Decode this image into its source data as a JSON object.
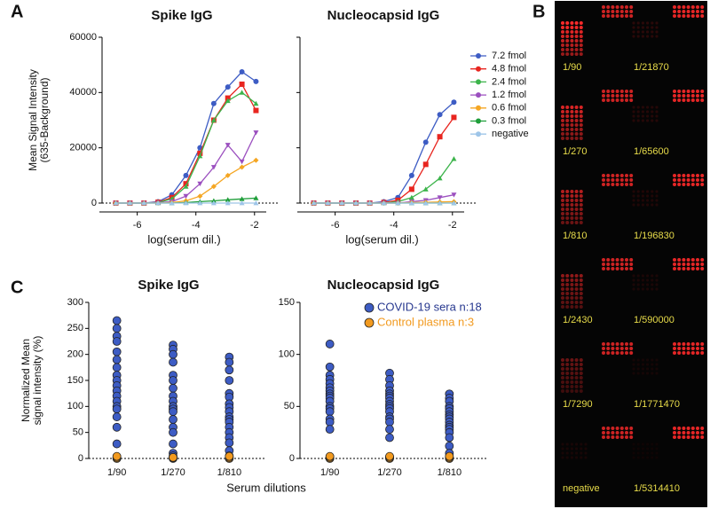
{
  "panel_labels": {
    "a": "A",
    "b": "B",
    "c": "C"
  },
  "shared_xlabel": "Serum dilutions",
  "chart_data": [
    {
      "type": "line",
      "title": "Spike IgG",
      "ylabel": [
        "Mean Signal Intensity",
        "(635-Background)"
      ],
      "xlabel": "log(serum dil.)",
      "x": [
        -6.73,
        -6.25,
        -5.77,
        -5.29,
        -4.82,
        -4.34,
        -3.86,
        -3.39,
        -2.91,
        -2.43,
        -1.95
      ],
      "xlim": [
        -7.2,
        -1.6
      ],
      "xticks": [
        -6,
        -4,
        -2
      ],
      "ylim": [
        0,
        60000
      ],
      "yticks": [
        0,
        20000,
        40000,
        60000
      ],
      "series": [
        {
          "name": "7.2 fmol",
          "color": "#3d5cc4",
          "marker": "circle",
          "values": [
            0,
            0,
            0,
            500,
            3000,
            10000,
            20000,
            36000,
            42000,
            47500,
            44000
          ]
        },
        {
          "name": "4.8 fmol",
          "color": "#e8251f",
          "marker": "square",
          "values": [
            0,
            0,
            0,
            300,
            2000,
            7000,
            18000,
            30000,
            38000,
            43000,
            33500
          ]
        },
        {
          "name": "2.4 fmol",
          "color": "#3cb44b",
          "marker": "triangle",
          "values": [
            0,
            0,
            0,
            200,
            1500,
            6000,
            17000,
            30000,
            37000,
            40000,
            36000
          ]
        },
        {
          "name": "1.2 fmol",
          "color": "#9b4fbf",
          "marker": "down-triangle",
          "values": [
            0,
            0,
            0,
            100,
            500,
            2500,
            7000,
            13000,
            21000,
            15000,
            25500
          ]
        },
        {
          "name": "0.6 fmol",
          "color": "#f5a623",
          "marker": "diamond",
          "values": [
            0,
            0,
            0,
            0,
            200,
            800,
            2500,
            6000,
            10000,
            13000,
            15500
          ]
        },
        {
          "name": "0.3 fmol",
          "color": "#1f9e3a",
          "marker": "triangle",
          "values": [
            0,
            0,
            0,
            0,
            0,
            200,
            500,
            800,
            1200,
            1500,
            1800
          ]
        },
        {
          "name": "negative",
          "color": "#9ec5e8",
          "marker": "triangle",
          "values": [
            0,
            0,
            0,
            0,
            0,
            0,
            0,
            0,
            0,
            0,
            0
          ]
        }
      ]
    },
    {
      "type": "line",
      "title": "Nucleocapsid IgG",
      "xlabel": "log(serum dil.)",
      "legend": "right",
      "x": [
        -6.73,
        -6.25,
        -5.77,
        -5.29,
        -4.82,
        -4.34,
        -3.86,
        -3.39,
        -2.91,
        -2.43,
        -1.95
      ],
      "xlim": [
        -7.2,
        -1.6
      ],
      "xticks": [
        -6,
        -4,
        -2
      ],
      "ylim": [
        0,
        60000
      ],
      "series": [
        {
          "name": "7.2 fmol",
          "color": "#3d5cc4",
          "marker": "circle",
          "values": [
            0,
            0,
            0,
            0,
            0,
            500,
            2000,
            10000,
            22000,
            32000,
            36500
          ]
        },
        {
          "name": "4.8 fmol",
          "color": "#e8251f",
          "marker": "square",
          "values": [
            0,
            0,
            0,
            0,
            0,
            200,
            1000,
            5000,
            14000,
            24000,
            31000
          ]
        },
        {
          "name": "2.4 fmol",
          "color": "#3cb44b",
          "marker": "triangle",
          "values": [
            0,
            0,
            0,
            0,
            0,
            0,
            500,
            2000,
            5000,
            9000,
            16000
          ]
        },
        {
          "name": "1.2 fmol",
          "color": "#9b4fbf",
          "marker": "down-triangle",
          "values": [
            0,
            0,
            0,
            0,
            0,
            0,
            0,
            500,
            1000,
            2000,
            3000
          ]
        },
        {
          "name": "0.6 fmol",
          "color": "#f5a623",
          "marker": "diamond",
          "values": [
            0,
            0,
            0,
            0,
            0,
            0,
            0,
            200,
            300,
            400,
            500
          ]
        },
        {
          "name": "0.3 fmol",
          "color": "#1f9e3a",
          "marker": "triangle",
          "values": [
            0,
            0,
            0,
            0,
            0,
            0,
            0,
            0,
            0,
            0,
            0
          ]
        },
        {
          "name": "negative",
          "color": "#9ec5e8",
          "marker": "triangle",
          "values": [
            0,
            0,
            0,
            0,
            0,
            0,
            0,
            0,
            0,
            0,
            0
          ]
        }
      ]
    },
    {
      "type": "strip",
      "title": "Spike IgG",
      "ylabel": [
        "Normalized Mean",
        "signal intensity (%)"
      ],
      "categories": [
        "1/90",
        "1/270",
        "1/810"
      ],
      "ylim": [
        0,
        300
      ],
      "yticks": [
        0,
        50,
        100,
        150,
        200,
        250,
        300
      ],
      "series": [
        {
          "name": "COVID-19 sera n:18",
          "color": "#3d5cc4",
          "values": [
            [
              265,
              250,
              235,
              225,
              205,
              190,
              175,
              160,
              150,
              140,
              130,
              120,
              110,
              100,
              95,
              80,
              60,
              28
            ],
            [
              218,
              210,
              200,
              185,
              160,
              150,
              135,
              120,
              110,
              100,
              95,
              90,
              75,
              60,
              50,
              28,
              10,
              5
            ],
            [
              195,
              185,
              170,
              150,
              125,
              118,
              105,
              98,
              90,
              80,
              75,
              70,
              60,
              50,
              40,
              30,
              15,
              5
            ]
          ]
        },
        {
          "name": "Control plasma n:3",
          "color": "#f29a1f",
          "values": [
            [
              0,
              2,
              4
            ],
            [
              0,
              1,
              2
            ],
            [
              0,
              2,
              4
            ]
          ]
        }
      ]
    },
    {
      "type": "strip",
      "title": "Nucleocapsid IgG",
      "legend": "top-right",
      "categories": [
        "1/90",
        "1/270",
        "1/810"
      ],
      "ylim": [
        0,
        150
      ],
      "yticks": [
        0,
        50,
        100,
        150
      ],
      "series": [
        {
          "name": "COVID-19 sera n:18",
          "color": "#3d5cc4",
          "values": [
            [
              110,
              88,
              80,
              76,
              72,
              68,
              65,
              62,
              60,
              58,
              55,
              50,
              48,
              45,
              38,
              35,
              28,
              1
            ],
            [
              82,
              76,
              70,
              65,
              62,
              60,
              58,
              55,
              52,
              50,
              48,
              45,
              40,
              38,
              35,
              28,
              20,
              1
            ],
            [
              62,
              58,
              55,
              50,
              48,
              45,
              42,
              40,
              38,
              35,
              32,
              30,
              28,
              25,
              20,
              12,
              5,
              1
            ]
          ]
        },
        {
          "name": "Control plasma n:3",
          "color": "#f29a1f",
          "values": [
            [
              0,
              1,
              2
            ],
            [
              0,
              1,
              2
            ],
            [
              0,
              1,
              2
            ]
          ]
        }
      ]
    }
  ],
  "array_panel": {
    "left": [
      "1/90",
      "1/270",
      "1/810",
      "1/2430",
      "1/7290",
      "negative"
    ],
    "right": [
      "1/21870",
      "1/65600",
      "1/196830",
      "1/590000",
      "1/1771470",
      "1/5314410"
    ]
  }
}
